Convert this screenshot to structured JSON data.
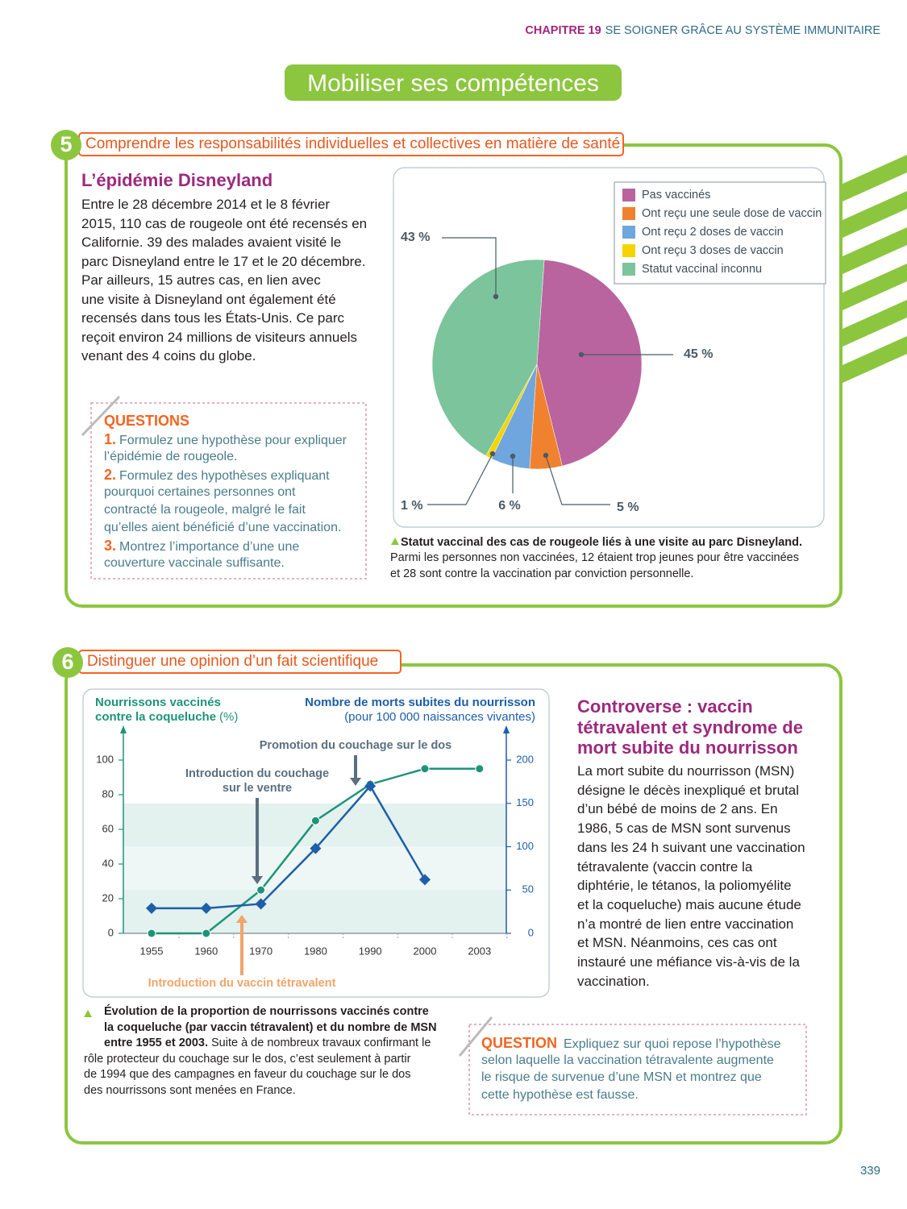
{
  "header": {
    "chapter": "CHAPITRE 19",
    "chapter_title": "SE SOIGNER GRÂCE AU SYSTÈME IMMUNITAIRE"
  },
  "banner": "Mobiliser ses compétences",
  "sections": [
    {
      "number": "5",
      "title": "Comprendre les responsabilités individuelles et collectives en matière de santé",
      "heading": "L’épidémie Disneyland",
      "text": [
        "Entre le 28 décembre 2014 et le 8 février",
        "2015, 110 cas de rougeole ont été recensés en",
        "Californie. 39 des malades avaient visité le",
        "parc Disneyland entre le 17 et le 20 décembre.",
        "Par ailleurs, 15 autres cas, en lien avec",
        "une visite à Disneyland ont également été",
        "recensés dans tous les États-Unis. Ce parc",
        "reçoit environ 24 millions de visiteurs annuels",
        "venant des 4 coins du globe."
      ],
      "questions_title": "QUESTIONS",
      "questions": [
        {
          "number": "1.",
          "lines": [
            "Formulez une hypothèse pour expliquer",
            "l’épidémie de rougeole."
          ]
        },
        {
          "number": "2.",
          "lines": [
            "Formulez des hypothèses expliquant",
            "pourquoi certaines personnes ont",
            "contracté la rougeole, malgré le fait",
            "qu’elles aient bénéficié d’une vaccination."
          ]
        },
        {
          "number": "3.",
          "lines": [
            "Montrez l’importance d’une une",
            "couverture vaccinale suffisante."
          ]
        }
      ],
      "caption_bold": [
        "Statut vaccinal des cas de rougeole liés à une visite au parc Disneyland."
      ],
      "caption": [
        "Parmi les personnes non vaccinées, 12 étaient trop jeunes pour être vaccinées",
        "et 28 sont contre la vaccination par conviction personnelle."
      ]
    },
    {
      "number": "6",
      "title": "Distinguer une opinion d’un fait scientifique",
      "heading": [
        "Controverse : vaccin",
        "tétravalent et syndrome de",
        "mort subite du nourrisson"
      ],
      "text": [
        "La mort subite du nourrisson (MSN)",
        "désigne le décès inexpliqué et brutal",
        "d’un bébé de moins de 2 ans. En",
        "1986, 5 cas de MSN sont survenus",
        "dans les 24 h suivant une vaccination",
        "tétravalente (vaccin contre la",
        "diphtérie, le tétanos, la poliomyélite",
        "et la coqueluche) mais aucune étude",
        "n’a montré de lien entre vaccination",
        "et MSN. Néanmoins, ces cas ont",
        "instauré une méfiance vis-à-vis de la",
        "vaccination."
      ],
      "questions_title": "QUESTION",
      "questions": [
        {
          "lines": [
            "Expliquez sur quoi repose l’hypothèse",
            "selon laquelle la vaccination tétravalente augmente",
            "le risque de survenue d’une MSN et montrez que",
            "cette hypothèse est fausse."
          ]
        }
      ],
      "caption_bold": [
        "Évolution de la proportion de nourrissons vaccinés contre",
        "la coqueluche (par vaccin tétravalent) et du nombre de MSN",
        "entre 1955 et 2003."
      ],
      "caption": [
        "Suite à de nombreux travaux confirmant le",
        "rôle protecteur du couchage sur le dos, c’est seulement à partir",
        "de 1994 que des campagnes en faveur du couchage sur le dos",
        "des nourrissons sont menées en France."
      ]
    }
  ],
  "chart_data": [
    {
      "type": "pie",
      "categories": [
        "Pas vaccinés",
        "Ont reçu une seule dose de vaccin",
        "Ont reçu 2 doses de vaccin",
        "Ont reçu 3 doses de vaccin",
        "Statut vaccinal inconnu"
      ],
      "values": [
        45,
        5,
        6,
        1,
        43
      ],
      "value_labels": [
        "45 %",
        "5 %",
        "6 %",
        "1 %",
        "43 %"
      ],
      "colors": [
        "#b9649f",
        "#f0822f",
        "#6fa6dd",
        "#f5d400",
        "#7cc49b"
      ],
      "legend": "top-right"
    },
    {
      "type": "line",
      "categories": [
        "1955",
        "1960",
        "1970",
        "1980",
        "1990",
        "2000",
        "2003"
      ],
      "y_label": [
        "Nourrissons vaccinés",
        "contre la coqueluche"
      ],
      "y_unit": "(%)",
      "y2_label": "Nombre de morts subites du nourrisson",
      "y2_sublabel": "(pour 100 000 naissances vivantes)",
      "series": [
        {
          "color": "#1e9479",
          "values": [
            0,
            0,
            25,
            65,
            86,
            95,
            95
          ]
        },
        {
          "color": "#1d5fa8",
          "axis": "y2",
          "values": [
            29,
            29,
            34,
            98,
            170,
            62,
            null
          ]
        }
      ],
      "ylim": [
        0,
        100
      ],
      "yticks": [
        0,
        20,
        40,
        60,
        80,
        100
      ],
      "y2lim": [
        0,
        200
      ],
      "y2ticks": [
        0,
        50,
        100,
        150,
        200
      ],
      "grid": false,
      "annotations": [
        [
          "Promotion du couchage sur le dos"
        ],
        [
          "Introduction du couchage",
          "sur le ventre"
        ],
        [
          "Introduction du vaccin tétravalent"
        ]
      ]
    }
  ],
  "page_number": "339"
}
